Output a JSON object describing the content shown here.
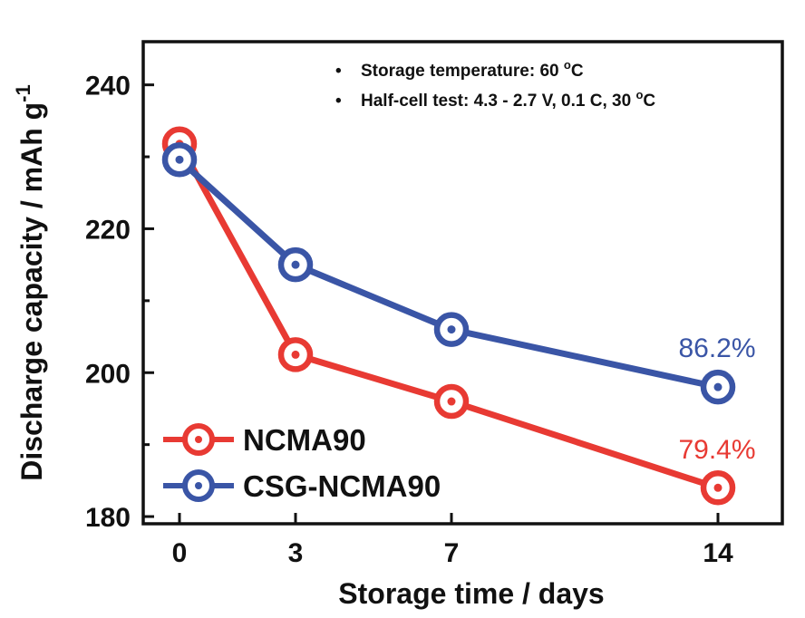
{
  "chart_data": {
    "type": "line",
    "title": "",
    "xlabel": "Storage time / days",
    "ylabel": "Discharge capacity / mAh g",
    "ylabel_superscript": "-1",
    "x": [
      0,
      3,
      7,
      14
    ],
    "x_tick_labels": [
      "0",
      "3",
      "7",
      "14"
    ],
    "y_ticks": [
      180,
      200,
      220,
      240
    ],
    "ylim": [
      179,
      246
    ],
    "series": [
      {
        "name": "NCMA90",
        "color": "#e83a33",
        "values": [
          231.8,
          202.5,
          196.0,
          184.0
        ],
        "end_label": "79.4%"
      },
      {
        "name": "CSG-NCMA90",
        "color": "#3a55a6",
        "values": [
          229.6,
          215.0,
          206.0,
          198.0
        ],
        "end_label": "86.2%"
      }
    ],
    "annotations": {
      "bullet": "•",
      "line1_text": "Storage temperature: 60 ",
      "line1_degree": "o",
      "line1_unit": "C",
      "line2_text": "Half-cell test: 4.3 - 2.7 V, 0.1 C, 30 ",
      "line2_degree": "o",
      "line2_unit": "C"
    },
    "legend_position": "bottom-left"
  }
}
